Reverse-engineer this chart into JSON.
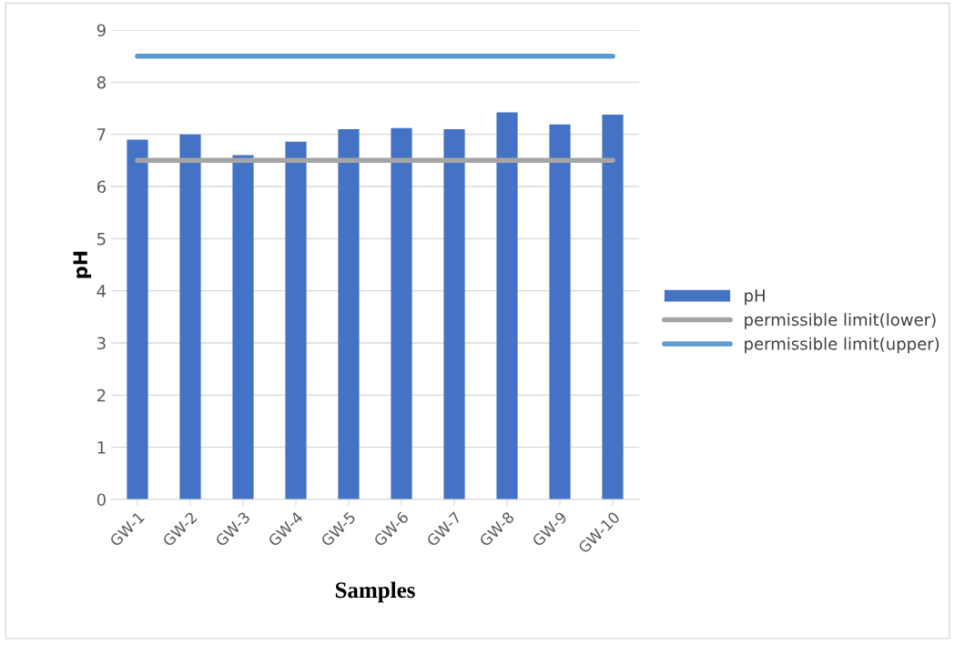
{
  "chart_data": {
    "type": "bar",
    "xlabel": "Samples",
    "ylabel": "pH",
    "categories": [
      "GW-1",
      "GW-2",
      "GW-3",
      "GW-4",
      "GW-5",
      "GW-6",
      "GW-7",
      "GW-8",
      "GW-9",
      "GW-10"
    ],
    "series": [
      {
        "name": "pH",
        "color": "#4472c4",
        "values": [
          6.9,
          7.0,
          6.6,
          6.86,
          7.1,
          7.12,
          7.1,
          7.42,
          7.19,
          7.38
        ]
      },
      {
        "name": "permissible limit(lower)",
        "type": "line",
        "color": "#a5a5a5",
        "values": [
          6.5,
          6.5,
          6.5,
          6.5,
          6.5,
          6.5,
          6.5,
          6.5,
          6.5,
          6.5
        ]
      },
      {
        "name": "permissible limit(upper)",
        "type": "line",
        "color": "#5b9bd5",
        "values": [
          8.5,
          8.5,
          8.5,
          8.5,
          8.5,
          8.5,
          8.5,
          8.5,
          8.5,
          8.5
        ]
      }
    ],
    "ylim": [
      0,
      9
    ],
    "yticks": [
      0,
      1,
      2,
      3,
      4,
      5,
      6,
      7,
      8,
      9
    ],
    "grid": "y",
    "legend": "right"
  }
}
